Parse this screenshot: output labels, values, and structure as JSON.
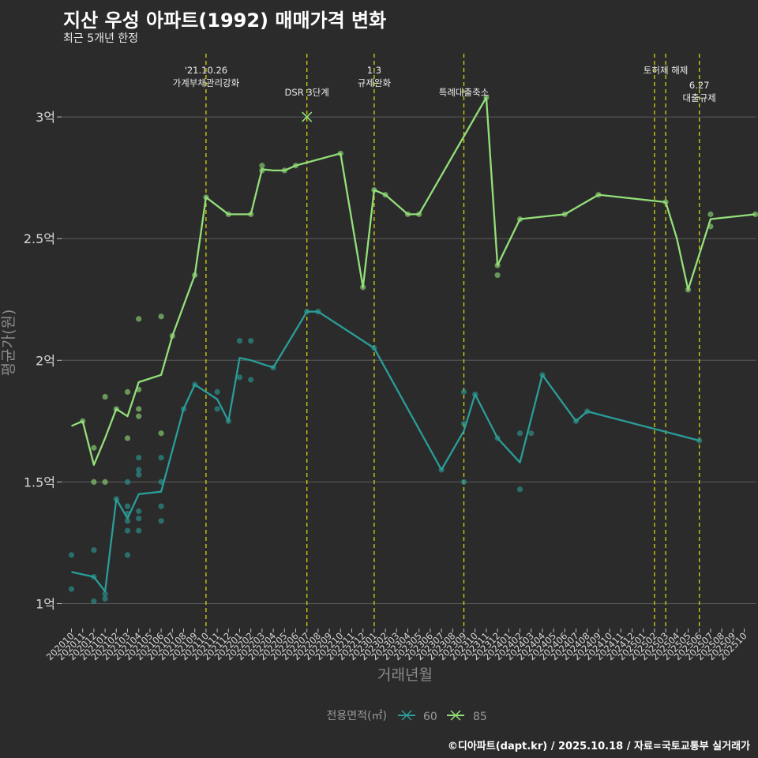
{
  "header": {
    "title": "지산 우성 아파트(1992) 매매가격 변화",
    "subtitle": "최근 5개년 한정",
    "caption": "©디아파트(dapt.kr) / 2025.10.18 / 자료=국토교통부 실거래가"
  },
  "chart_data": {
    "type": "line",
    "title": "지산 우성 아파트(1992) 매매가격 변화",
    "xlabel": "거래년월",
    "ylabel": "평균가(원)",
    "ylim": [
      0.92,
      3.25
    ],
    "y_ticks": [
      {
        "v": 1,
        "label": "1억"
      },
      {
        "v": 1.5,
        "label": "1.5억"
      },
      {
        "v": 2,
        "label": "2억"
      },
      {
        "v": 2.5,
        "label": "2.5억"
      },
      {
        "v": 3,
        "label": "3억"
      }
    ],
    "x_ticks": [
      "202010",
      "202011",
      "202012",
      "202101",
      "202102",
      "202103",
      "202104",
      "202105",
      "202106",
      "202107",
      "202108",
      "202109",
      "202110",
      "202111",
      "202112",
      "202201",
      "202202",
      "202203",
      "202204",
      "202205",
      "202206",
      "202207",
      "202208",
      "202209",
      "202210",
      "202211",
      "202212",
      "202301",
      "202302",
      "202303",
      "202304",
      "202305",
      "202306",
      "202307",
      "202308",
      "202309",
      "202310",
      "202311",
      "202312",
      "202401",
      "202402",
      "202403",
      "202404",
      "202405",
      "202406",
      "202407",
      "202408",
      "202409",
      "202410",
      "202411",
      "202412",
      "202501",
      "202502",
      "202503",
      "202504",
      "202505",
      "202506",
      "202507",
      "202508",
      "202509",
      "202510"
    ],
    "legend": {
      "title": "전용면적(㎡)",
      "position": "bottom"
    },
    "series": [
      {
        "name": "60",
        "color": "#2a9d98",
        "line": [
          [
            0,
            1.13
          ],
          [
            2,
            1.11
          ],
          [
            3,
            1.05
          ],
          [
            4,
            1.43
          ],
          [
            5,
            1.35
          ],
          [
            6,
            1.45
          ],
          [
            8,
            1.46
          ],
          [
            10,
            1.8
          ],
          [
            11,
            1.9
          ],
          [
            13,
            1.84
          ],
          [
            14,
            1.75
          ],
          [
            15,
            2.01
          ],
          [
            16,
            2.0
          ],
          [
            18,
            1.97
          ],
          [
            21,
            2.2
          ],
          [
            22,
            2.2
          ],
          [
            27,
            2.05
          ],
          [
            33,
            1.55
          ],
          [
            35,
            1.71
          ],
          [
            36,
            1.86
          ],
          [
            38,
            1.68
          ],
          [
            40,
            1.58
          ],
          [
            42,
            1.94
          ],
          [
            45,
            1.75
          ],
          [
            46,
            1.79
          ],
          [
            56,
            1.67
          ]
        ],
        "points": [
          [
            0,
            1.2
          ],
          [
            0,
            1.06
          ],
          [
            2,
            1.22
          ],
          [
            2,
            1.11
          ],
          [
            2,
            1.01
          ],
          [
            3,
            1.04
          ],
          [
            3,
            1.02
          ],
          [
            4,
            1.43
          ],
          [
            5,
            1.5
          ],
          [
            5,
            1.4
          ],
          [
            5,
            1.37
          ],
          [
            5,
            1.34
          ],
          [
            5,
            1.3
          ],
          [
            5,
            1.2
          ],
          [
            6,
            1.6
          ],
          [
            6,
            1.55
          ],
          [
            6,
            1.53
          ],
          [
            6,
            1.38
          ],
          [
            6,
            1.35
          ],
          [
            6,
            1.3
          ],
          [
            8,
            1.6
          ],
          [
            8,
            1.5
          ],
          [
            8,
            1.4
          ],
          [
            8,
            1.34
          ],
          [
            10,
            1.8
          ],
          [
            11,
            1.9
          ],
          [
            13,
            1.87
          ],
          [
            13,
            1.8
          ],
          [
            14,
            1.75
          ],
          [
            15,
            2.08
          ],
          [
            15,
            1.93
          ],
          [
            16,
            2.08
          ],
          [
            16,
            1.92
          ],
          [
            18,
            1.97
          ],
          [
            21,
            2.2
          ],
          [
            22,
            2.2
          ],
          [
            27,
            2.05
          ],
          [
            33,
            1.55
          ],
          [
            35,
            1.87
          ],
          [
            35,
            1.74
          ],
          [
            35,
            1.5
          ],
          [
            36,
            1.86
          ],
          [
            38,
            1.68
          ],
          [
            40,
            1.7
          ],
          [
            40,
            1.47
          ],
          [
            41,
            1.7
          ],
          [
            42,
            1.94
          ],
          [
            45,
            1.75
          ],
          [
            46,
            1.79
          ],
          [
            56,
            1.67
          ]
        ]
      },
      {
        "name": "85",
        "color": "#93e07a",
        "line": [
          [
            0,
            1.73
          ],
          [
            1,
            1.75
          ],
          [
            2,
            1.57
          ],
          [
            3,
            1.68
          ],
          [
            4,
            1.8
          ],
          [
            5,
            1.77
          ],
          [
            6,
            1.91
          ],
          [
            8,
            1.94
          ],
          [
            9,
            2.1
          ],
          [
            11,
            2.35
          ],
          [
            12,
            2.67
          ],
          [
            14,
            2.6
          ],
          [
            16,
            2.6
          ],
          [
            17,
            2.785
          ],
          [
            18,
            2.78
          ],
          [
            19,
            2.78
          ],
          [
            20,
            2.8
          ],
          [
            24,
            2.85
          ],
          [
            26,
            2.3
          ],
          [
            27,
            2.7
          ],
          [
            28,
            2.68
          ],
          [
            30,
            2.6
          ],
          [
            31,
            2.6
          ],
          [
            37,
            3.08
          ],
          [
            38,
            2.39
          ],
          [
            40,
            2.58
          ],
          [
            44,
            2.6
          ],
          [
            47,
            2.68
          ],
          [
            53,
            2.65
          ],
          [
            54,
            2.5
          ],
          [
            55,
            2.29
          ],
          [
            57,
            2.58
          ],
          [
            61,
            2.6
          ]
        ],
        "points": [
          [
            1,
            1.75
          ],
          [
            2,
            1.64
          ],
          [
            2,
            1.5
          ],
          [
            3,
            1.85
          ],
          [
            3,
            1.5
          ],
          [
            4,
            1.8
          ],
          [
            5,
            1.87
          ],
          [
            5,
            1.68
          ],
          [
            6,
            2.17
          ],
          [
            6,
            1.88
          ],
          [
            6,
            1.8
          ],
          [
            6,
            1.77
          ],
          [
            8,
            2.18
          ],
          [
            8,
            1.7
          ],
          [
            9,
            2.1
          ],
          [
            11,
            2.35
          ],
          [
            12,
            2.67
          ],
          [
            14,
            2.6
          ],
          [
            16,
            2.6
          ],
          [
            17,
            2.8
          ],
          [
            17,
            2.78
          ],
          [
            19,
            2.78
          ],
          [
            20,
            2.8
          ],
          [
            24,
            2.85
          ],
          [
            26,
            2.3
          ],
          [
            27,
            2.7
          ],
          [
            28,
            2.68
          ],
          [
            30,
            2.6
          ],
          [
            31,
            2.6
          ],
          [
            37,
            3.08
          ],
          [
            38,
            2.39
          ],
          [
            38,
            2.35
          ],
          [
            40,
            2.58
          ],
          [
            44,
            2.6
          ],
          [
            47,
            2.68
          ],
          [
            53,
            2.65
          ],
          [
            55,
            2.29
          ],
          [
            57,
            2.6
          ],
          [
            57,
            2.55
          ],
          [
            61,
            2.6
          ]
        ],
        "cross_marker": [
          21,
          3.0
        ]
      }
    ],
    "annotations": [
      {
        "x": 12,
        "lines": [
          "'21.10.26",
          "가계부채관리강화"
        ],
        "row": 0
      },
      {
        "x": 21,
        "lines": [
          "DSR 3단계"
        ],
        "row": 1
      },
      {
        "x": 27,
        "lines": [
          "1.3",
          "규제완화"
        ],
        "row": 0
      },
      {
        "x": 35,
        "lines": [
          "특례대출축소"
        ],
        "row": 1
      },
      {
        "x": 52,
        "lines": [],
        "row": 0
      },
      {
        "x": 53,
        "lines": [
          "토허제 해제"
        ],
        "row": 0
      },
      {
        "x": 56,
        "lines": [
          "6.27",
          "대출규제"
        ],
        "row": 2
      }
    ]
  }
}
